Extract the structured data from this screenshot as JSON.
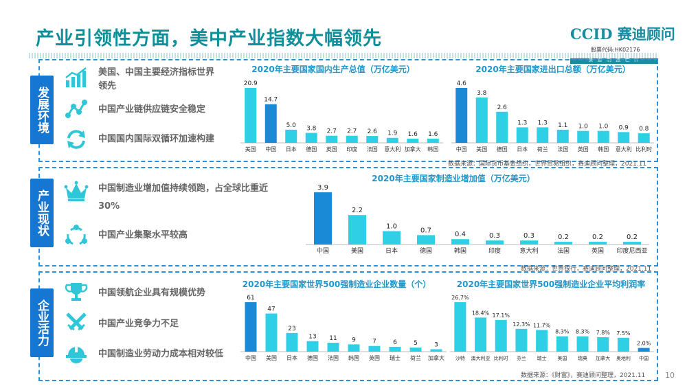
{
  "title": "产业引领性方面，美中产业指数大幅领先",
  "logo": {
    "name": "CCID 赛迪顾问",
    "code": "股票代码:HK02176",
    "tagline": "赛 迪 制 造 世 界"
  },
  "page_number": "10",
  "sections": [
    {
      "label": "发展环境",
      "bullets": [
        {
          "icon": "growth-chart-icon",
          "text": "美国、中国主要经济指标世界领先"
        },
        {
          "icon": "network-nodes-icon",
          "text": "中国产业链供应链安全稳定"
        },
        {
          "icon": "cycle-arrows-icon",
          "text": "中国国内国际双循环加速构建"
        }
      ]
    },
    {
      "label": "产业现状",
      "bullets": [
        {
          "icon": "crown-icon",
          "text": "中国制造业增加值持续领跑，占全球比重近30%"
        },
        {
          "icon": "cluster-icon",
          "text": "中国产业集聚水平较高"
        }
      ]
    },
    {
      "label": "企业活力",
      "bullets": [
        {
          "icon": "trophy-icon",
          "text": "中国领航企业具有规模优势"
        },
        {
          "icon": "swords-icon",
          "text": "中国产业竞争力不足"
        },
        {
          "icon": "worker-helmet-icon",
          "text": "中国制造业劳动力成本相对较低"
        }
      ]
    }
  ],
  "colors": {
    "accent": "#0e8f99",
    "highlight": "#1a8ad6",
    "bar": "#2fd0e6",
    "tab": "#1677d2",
    "title": "#2196c9"
  },
  "chart_data": [
    {
      "id": "gdp",
      "type": "bar",
      "title": "2020年主要国家国内生产总值（万亿美元）",
      "categories": [
        "美国",
        "中国",
        "日本",
        "德国",
        "英国",
        "印度",
        "法国",
        "意大利",
        "加拿大",
        "韩国"
      ],
      "values": [
        20.9,
        14.7,
        5.0,
        3.8,
        2.7,
        2.7,
        2.6,
        1.9,
        1.6,
        1.6
      ],
      "labels": [
        "20.9",
        "14.7",
        "5.0",
        "3.8",
        "2.7",
        "2.7",
        "2.6",
        "1.9",
        "1.6",
        "1.6"
      ],
      "highlight": [
        1
      ],
      "ylim": [
        0,
        20.9
      ],
      "source": ""
    },
    {
      "id": "trade",
      "type": "bar",
      "title": "2020年主要国家进出口总额（万亿美元）",
      "categories": [
        "中国",
        "美国",
        "德国",
        "日本",
        "荷兰",
        "法国",
        "英国",
        "韩国",
        "意大利",
        "比利时"
      ],
      "values": [
        4.6,
        3.8,
        2.6,
        1.3,
        1.3,
        1.1,
        1.0,
        1.0,
        0.9,
        0.8
      ],
      "labels": [
        "4.6",
        "3.8",
        "2.6",
        "1.3",
        "1.3",
        "1.1",
        "1.0",
        "1.0",
        "0.9",
        "0.8"
      ],
      "highlight": [
        0
      ],
      "ylim": [
        0,
        4.6
      ],
      "source": "数据来源：国际货币基金组织，世界贸易组织，赛迪顾问整理，2021.11"
    },
    {
      "id": "manufacturing",
      "type": "bar",
      "title": "2020年主要国家制造业增加值（万亿美元）",
      "categories": [
        "中国",
        "美国",
        "日本",
        "德国",
        "韩国",
        "印度",
        "意大利",
        "法国",
        "英国",
        "印度尼西亚"
      ],
      "values": [
        3.9,
        2.2,
        1.0,
        0.7,
        0.4,
        0.3,
        0.3,
        0.2,
        0.2,
        0.2
      ],
      "labels": [
        "3.9",
        "2.2",
        "1.0",
        "0.7",
        "0.4",
        "0.3",
        "0.3",
        "0.2",
        "0.2",
        "0.2"
      ],
      "highlight": [
        0
      ],
      "ylim": [
        0,
        3.9
      ],
      "source": "数据来源：世界银行，赛迪顾问整理，2021.11"
    },
    {
      "id": "fortune500",
      "type": "bar",
      "title": "2020年主要国家世界500强制造业企业数量（个）",
      "categories": [
        "中国",
        "美国",
        "日本",
        "德国",
        "法国",
        "韩国",
        "英国",
        "瑞士",
        "荷兰",
        "加拿大"
      ],
      "values": [
        61,
        47,
        23,
        13,
        11,
        9,
        7,
        6,
        5,
        3
      ],
      "labels": [
        "61",
        "47",
        "23",
        "13",
        "11",
        "9",
        "7",
        "6",
        "5",
        "3"
      ],
      "highlight": [
        0
      ],
      "ylim": [
        0,
        61
      ],
      "source": ""
    },
    {
      "id": "profit",
      "type": "bar",
      "title": "2020年主要国家世界500强制造业企业平均利润率",
      "categories": [
        "沙特",
        "澳大利亚",
        "比利时",
        "芬兰",
        "瑞士",
        "美国",
        "瑞典",
        "加拿大",
        "奥地利",
        "中国"
      ],
      "values": [
        26.7,
        18.4,
        17.1,
        12.3,
        11.7,
        8.3,
        8.3,
        7.8,
        7.5,
        2.0
      ],
      "labels": [
        "26.7%",
        "18.4%",
        "17.1%",
        "12.3%",
        "11.7%",
        "8.3%",
        "8.3%",
        "7.8%",
        "7.5%",
        "2.0%"
      ],
      "highlight": [
        9
      ],
      "ylim": [
        0,
        26.7
      ],
      "source": "数据来源：《财富》，赛迪顾问整理，2021.11"
    }
  ]
}
